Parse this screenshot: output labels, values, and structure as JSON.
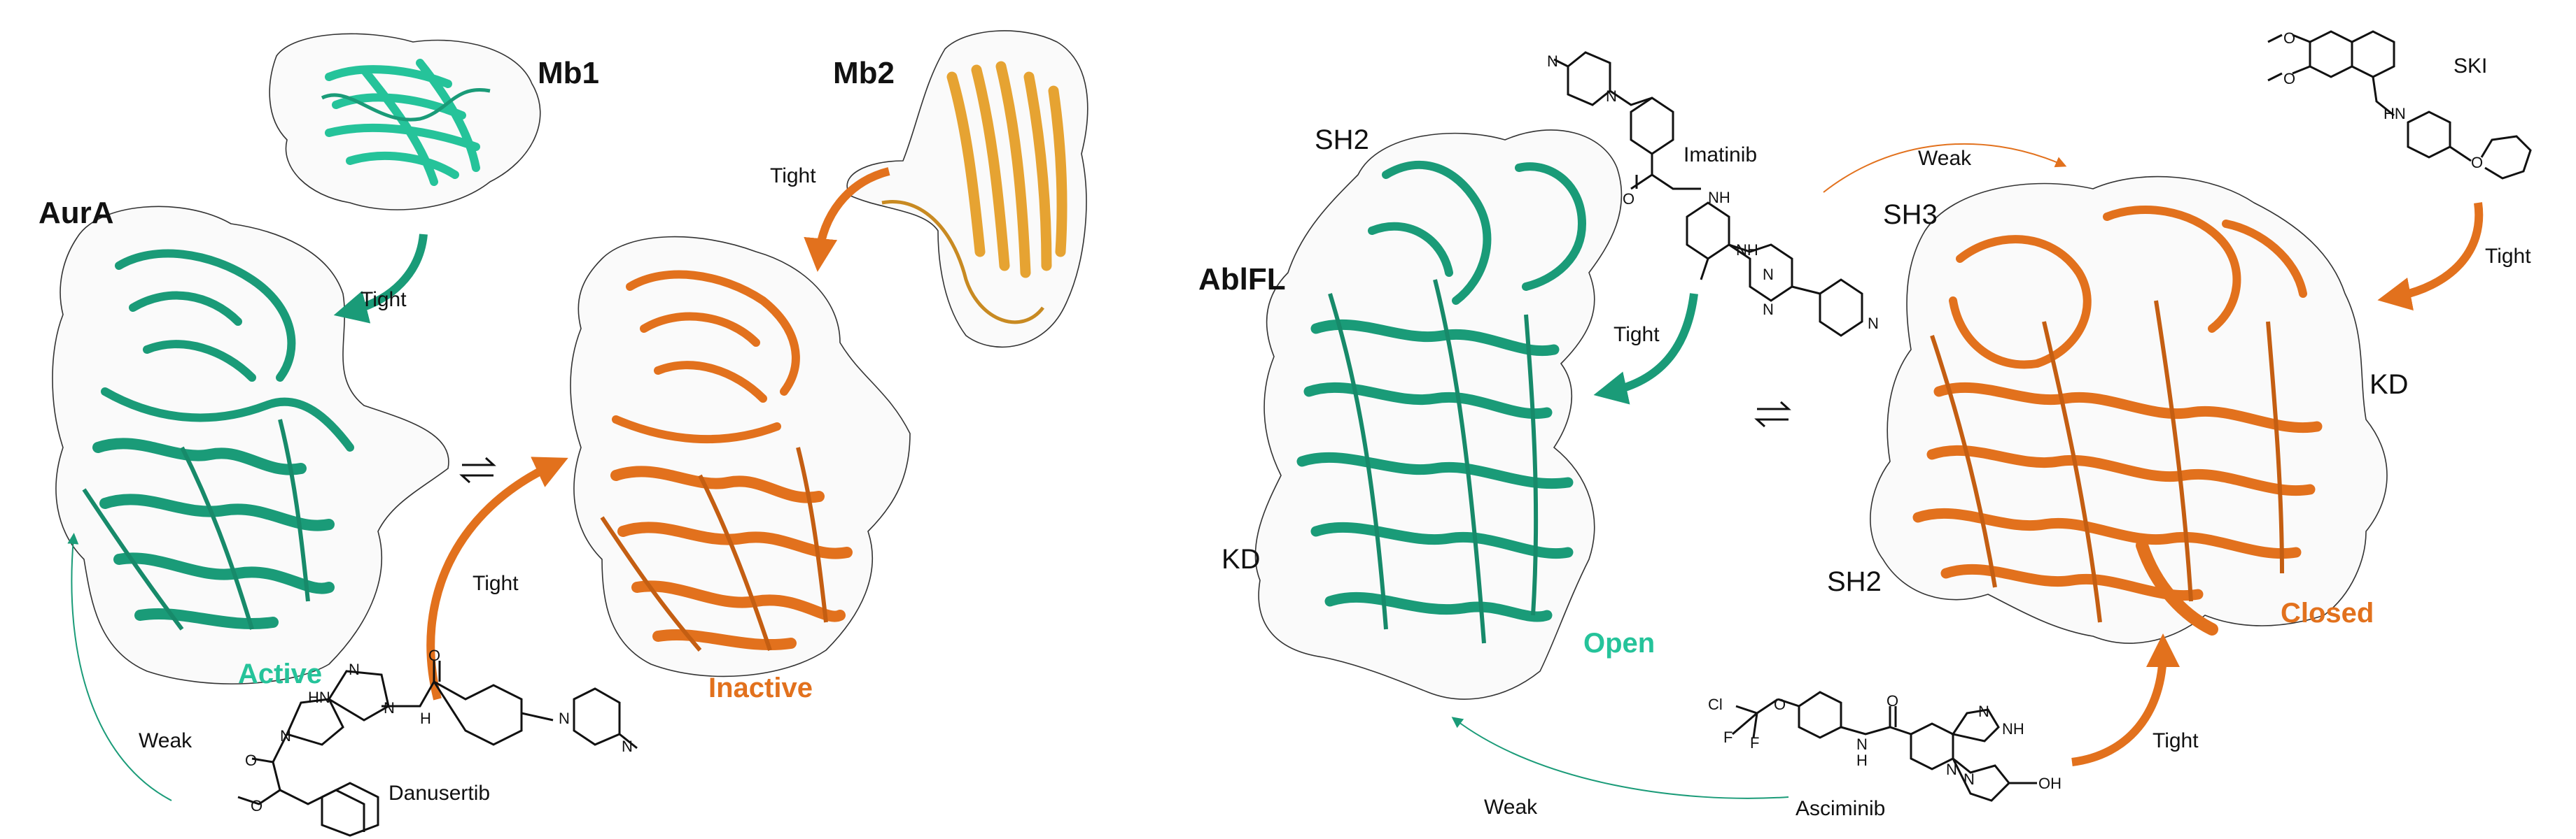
{
  "colors": {
    "active": "#1a9b78",
    "active_light": "#25c39a",
    "inactive": "#e2711d",
    "mb2": "#e6a332",
    "surface_stroke": "#333333"
  },
  "left_panel": {
    "protein_label": "AurA",
    "mb1_label": "Mb1",
    "mb2_label": "Mb2",
    "active_label": "Active",
    "inactive_label": "Inactive",
    "arrow_mb1": "Tight",
    "arrow_mb2": "Tight",
    "arrow_danusertib": "Tight",
    "arrow_weak": "Weak",
    "drug_label": "Danusertib",
    "equilibrium": "⇌"
  },
  "right_panel": {
    "protein_label": "AblFL",
    "open_label": "Open",
    "closed_label": "Closed",
    "sh2_open": "SH2",
    "kd_open": "KD",
    "sh3_closed": "SH3",
    "kd_closed": "KD",
    "sh2_closed": "SH2",
    "imatinib_label": "Imatinib",
    "ski_label": "SKI",
    "asciminib_label": "Asciminib",
    "arrow_imatinib_tight": "Tight",
    "arrow_imatinib_weak": "Weak",
    "arrow_ski": "Tight",
    "arrow_asciminib_tight": "Tight",
    "arrow_asciminib_weak": "Weak",
    "equilibrium": "⇌"
  },
  "chem_atoms": {
    "dan_hn": "HN",
    "dan_n1": "N",
    "dan_n2": "N",
    "dan_nh": "N",
    "dan_h": "H",
    "dan_o1": "O",
    "dan_o2": "O",
    "dan_o3": "O",
    "dan_pn1": "N",
    "dan_pn2": "N",
    "ima_n1": "N",
    "ima_n2": "N",
    "ima_nh1": "NH",
    "ima_o": "O",
    "ima_nh2": "NH",
    "ima_n3": "N",
    "ima_n4": "N",
    "ima_n5": "N",
    "ski_o1": "O",
    "ski_o2": "O",
    "ski_hn": "HN",
    "ski_o3": "O",
    "asc_cl": "Cl",
    "asc_f1": "F",
    "asc_f2": "F",
    "asc_o1": "O",
    "asc_nh1": "N",
    "asc_h1": "H",
    "asc_o2": "O",
    "asc_n1": "N",
    "asc_n2": "N",
    "asc_nh2": "NH",
    "asc_n3": "N",
    "asc_oh": "OH"
  }
}
